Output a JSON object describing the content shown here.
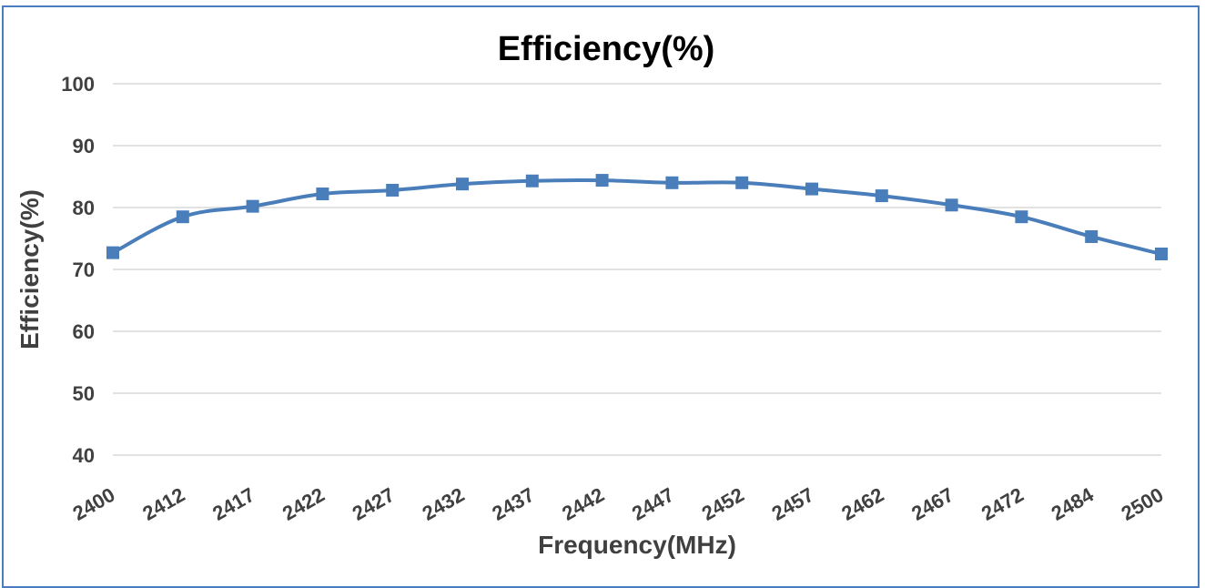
{
  "chart_data": {
    "type": "line",
    "title": "Efficiency(%)",
    "xlabel": "Frequency(MHz)",
    "ylabel": "Efficiency(%)",
    "categories": [
      "2400",
      "2412",
      "2417",
      "2422",
      "2427",
      "2432",
      "2437",
      "2442",
      "2447",
      "2452",
      "2457",
      "2462",
      "2467",
      "2472",
      "2484",
      "2500"
    ],
    "ylim": [
      40,
      100
    ],
    "yticks": [
      40,
      50,
      60,
      70,
      80,
      90,
      100
    ],
    "grid": true,
    "legend": "none",
    "series": [
      {
        "color": "#4a7ebb",
        "marker": "square",
        "values": [
          72.7,
          78.5,
          80.2,
          82.2,
          82.8,
          83.8,
          84.3,
          84.4,
          84.0,
          84.0,
          83.0,
          81.9,
          80.4,
          78.5,
          75.3,
          72.5
        ]
      }
    ]
  }
}
